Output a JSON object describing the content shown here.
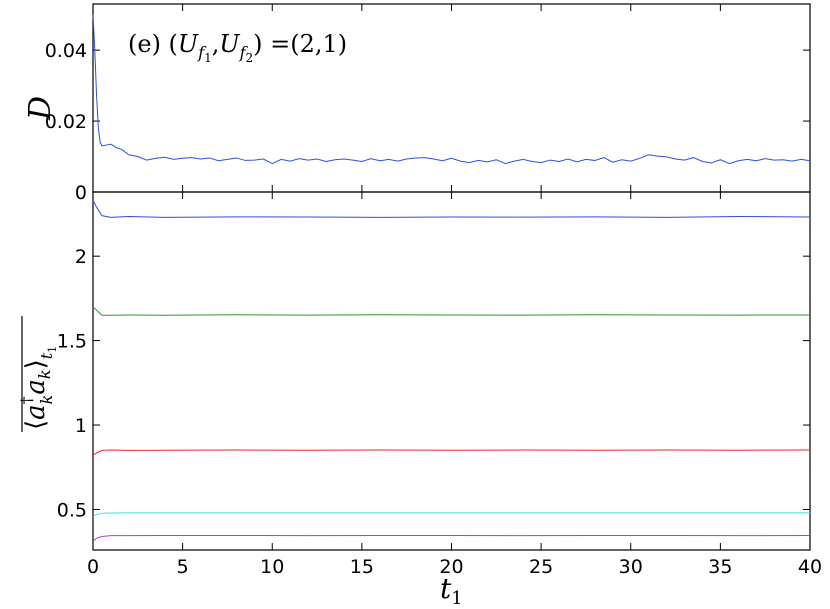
{
  "chart_data": [
    {
      "type": "line",
      "panel": "top",
      "annotation": "(e) (U_f1, U_f2) =(2,1)",
      "annotation_parts": {
        "prefix": "(e) (",
        "var1": "U",
        "sub1": "f",
        "subsub1": "1",
        "sep": ",",
        "var2": "U",
        "sub2": "f",
        "subsub2": "2",
        "suffix": ") =(2,1)"
      },
      "ylabel": "D",
      "xlim": [
        0,
        40
      ],
      "ylim": [
        0,
        0.053
      ],
      "yticks": [
        0,
        0.02,
        0.04
      ],
      "ytick_labels": [
        "0",
        "0.02",
        "0.04"
      ],
      "grid": false,
      "series": [
        {
          "color": "#3050e0",
          "x": [
            0,
            0.1,
            0.2,
            0.3,
            0.4,
            0.5,
            0.7,
            1.0,
            1.3,
            1.6,
            2.0,
            2.5,
            3.0,
            3.5,
            4.0,
            4.5,
            5.0,
            5.5,
            6.0,
            6.5,
            7.0,
            7.5,
            8.0,
            8.5,
            9.0,
            9.5,
            10.0,
            10.5,
            11.0,
            11.5,
            12.0,
            12.5,
            13.0,
            13.5,
            14.0,
            14.5,
            15.0,
            15.5,
            16.0,
            16.5,
            17.0,
            17.5,
            18.0,
            18.5,
            19.0,
            19.5,
            20.0,
            20.5,
            21.0,
            21.5,
            22.0,
            22.5,
            23.0,
            23.5,
            24.0,
            24.5,
            25.0,
            25.5,
            26.0,
            26.5,
            27.0,
            27.5,
            28.0,
            28.5,
            29.0,
            29.5,
            30.0,
            30.5,
            31.0,
            31.5,
            32.0,
            32.5,
            33.0,
            33.5,
            34.0,
            34.5,
            35.0,
            35.5,
            36.0,
            36.5,
            37.0,
            37.5,
            38.0,
            38.5,
            39.0,
            39.5,
            40.0
          ],
          "y": [
            0.05,
            0.04,
            0.027,
            0.018,
            0.014,
            0.013,
            0.0132,
            0.0135,
            0.0125,
            0.012,
            0.0105,
            0.01,
            0.009,
            0.0095,
            0.0098,
            0.0092,
            0.0095,
            0.0097,
            0.0093,
            0.0096,
            0.0088,
            0.0092,
            0.0096,
            0.0089,
            0.009,
            0.0093,
            0.008,
            0.0092,
            0.0087,
            0.0094,
            0.009,
            0.0093,
            0.0086,
            0.0091,
            0.0093,
            0.009,
            0.0086,
            0.0094,
            0.0088,
            0.0092,
            0.0087,
            0.0093,
            0.0096,
            0.0097,
            0.0093,
            0.0088,
            0.0095,
            0.0087,
            0.0083,
            0.0089,
            0.0085,
            0.0091,
            0.008,
            0.0087,
            0.0092,
            0.0086,
            0.0083,
            0.009,
            0.0086,
            0.0093,
            0.0085,
            0.0092,
            0.0089,
            0.0097,
            0.0084,
            0.0091,
            0.0087,
            0.0095,
            0.0105,
            0.0101,
            0.0099,
            0.0093,
            0.009,
            0.0097,
            0.0086,
            0.0082,
            0.0091,
            0.008,
            0.0088,
            0.0092,
            0.0088,
            0.0094,
            0.009,
            0.0091,
            0.0087,
            0.0092,
            0.0088
          ]
        }
      ]
    },
    {
      "type": "line",
      "panel": "bottom",
      "ylabel": "⟨a_k† a_k⟩_t1 (overlined)",
      "ylabel_parts": {
        "left": "⟨",
        "a1": "a",
        "dagger": "†",
        "k1": "k",
        "a2": "a",
        "k2": "k",
        "right": "⟩",
        "sub": "t",
        "subsub": "1"
      },
      "xlabel_parts": {
        "var": "t",
        "sub": "1"
      },
      "xlim": [
        0,
        40
      ],
      "ylim": [
        0.26,
        2.38
      ],
      "xticks": [
        0,
        5,
        10,
        15,
        20,
        25,
        30,
        35,
        40
      ],
      "xtick_labels": [
        "0",
        "5",
        "10",
        "15",
        "20",
        "25",
        "30",
        "35",
        "40"
      ],
      "yticks": [
        0.5,
        1,
        1.5,
        2
      ],
      "ytick_labels": [
        "0.5",
        "1",
        "1.5",
        "2"
      ],
      "grid": false,
      "series": [
        {
          "color": "#3050e0",
          "x": [
            0,
            0.2,
            0.5,
            1,
            2,
            4,
            8,
            12,
            16,
            20,
            24,
            28,
            32,
            36,
            40
          ],
          "y": [
            2.33,
            2.29,
            2.24,
            2.23,
            2.235,
            2.23,
            2.233,
            2.232,
            2.23,
            2.232,
            2.231,
            2.233,
            2.23,
            2.235,
            2.232
          ]
        },
        {
          "color": "#2a9a2a",
          "x": [
            0,
            0.2,
            0.5,
            1,
            2,
            4,
            8,
            12,
            16,
            20,
            24,
            28,
            32,
            36,
            40
          ],
          "y": [
            1.7,
            1.68,
            1.65,
            1.65,
            1.652,
            1.65,
            1.653,
            1.651,
            1.653,
            1.652,
            1.651,
            1.653,
            1.652,
            1.651,
            1.652
          ]
        },
        {
          "color": "#e03030",
          "x": [
            0,
            0.2,
            0.5,
            1,
            2,
            4,
            8,
            12,
            16,
            20,
            24,
            28,
            32,
            36,
            40
          ],
          "y": [
            0.82,
            0.835,
            0.85,
            0.852,
            0.85,
            0.851,
            0.852,
            0.851,
            0.852,
            0.851,
            0.852,
            0.851,
            0.852,
            0.851,
            0.852
          ]
        },
        {
          "color": "#40e0d8",
          "x": [
            0,
            0.2,
            0.5,
            1,
            2,
            4,
            8,
            12,
            16,
            20,
            24,
            28,
            32,
            36,
            40
          ],
          "y": [
            0.46,
            0.47,
            0.478,
            0.479,
            0.48,
            0.48,
            0.48,
            0.48,
            0.48,
            0.48,
            0.48,
            0.48,
            0.48,
            0.48,
            0.48
          ]
        },
        {
          "color": "#b040c0",
          "x": [
            0,
            0.2,
            0.5,
            1,
            2,
            4,
            8,
            12,
            16,
            20,
            24,
            28,
            32,
            36,
            40
          ],
          "y": [
            0.31,
            0.33,
            0.34,
            0.345,
            0.345,
            0.346,
            0.346,
            0.345,
            0.346,
            0.346,
            0.345,
            0.346,
            0.346,
            0.345,
            0.346
          ]
        }
      ]
    }
  ]
}
